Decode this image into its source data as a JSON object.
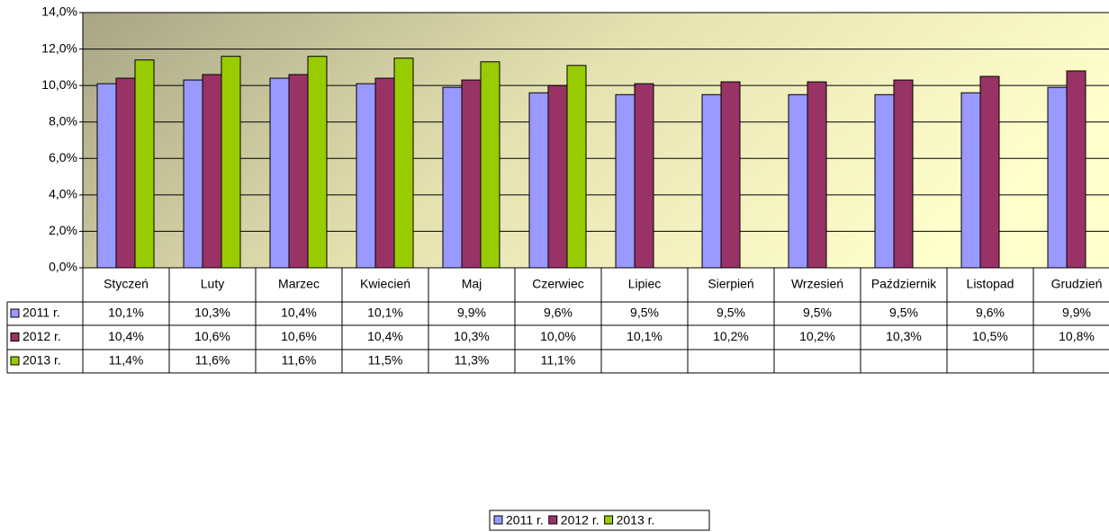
{
  "chart_data": {
    "type": "bar",
    "categories": [
      "Styczeń",
      "Luty",
      "Marzec",
      "Kwiecień",
      "Maj",
      "Czerwiec",
      "Lipiec",
      "Sierpień",
      "Wrzesień",
      "Październik",
      "Listopad",
      "Grudzień"
    ],
    "series": [
      {
        "name": "2011 r.",
        "color": "#9999ff",
        "values": [
          10.1,
          10.3,
          10.4,
          10.1,
          9.9,
          9.6,
          9.5,
          9.5,
          9.5,
          9.5,
          9.6,
          9.9
        ],
        "value_labels": [
          "10,1%",
          "10,3%",
          "10,4%",
          "10,1%",
          "9,9%",
          "9,6%",
          "9,5%",
          "9,5%",
          "9,5%",
          "9,5%",
          "9,6%",
          "9,9%"
        ]
      },
      {
        "name": "2012 r.",
        "color": "#993366",
        "values": [
          10.4,
          10.6,
          10.6,
          10.4,
          10.3,
          10.0,
          10.1,
          10.2,
          10.2,
          10.3,
          10.5,
          10.8
        ],
        "value_labels": [
          "10,4%",
          "10,6%",
          "10,6%",
          "10,4%",
          "10,3%",
          "10,0%",
          "10,1%",
          "10,2%",
          "10,2%",
          "10,3%",
          "10,5%",
          "10,8%"
        ]
      },
      {
        "name": "2013 r.",
        "color": "#99cc00",
        "values": [
          11.4,
          11.6,
          11.6,
          11.5,
          11.3,
          11.1,
          null,
          null,
          null,
          null,
          null,
          null
        ],
        "value_labels": [
          "11,4%",
          "11,6%",
          "11,6%",
          "11,5%",
          "11,3%",
          "11,1%",
          null,
          null,
          null,
          null,
          null,
          null
        ]
      }
    ],
    "ylim": [
      0,
      14
    ],
    "yticks": [
      {
        "value": 0,
        "label": "0,0%"
      },
      {
        "value": 2,
        "label": "2,0%"
      },
      {
        "value": 4,
        "label": "4,0%"
      },
      {
        "value": 6,
        "label": "6,0%"
      },
      {
        "value": 8,
        "label": "8,0%"
      },
      {
        "value": 10,
        "label": "10,0%"
      },
      {
        "value": 12,
        "label": "12,0%"
      },
      {
        "value": 14,
        "label": "14,0%"
      }
    ],
    "grid": true,
    "legend": "bottom",
    "data_table": true
  }
}
